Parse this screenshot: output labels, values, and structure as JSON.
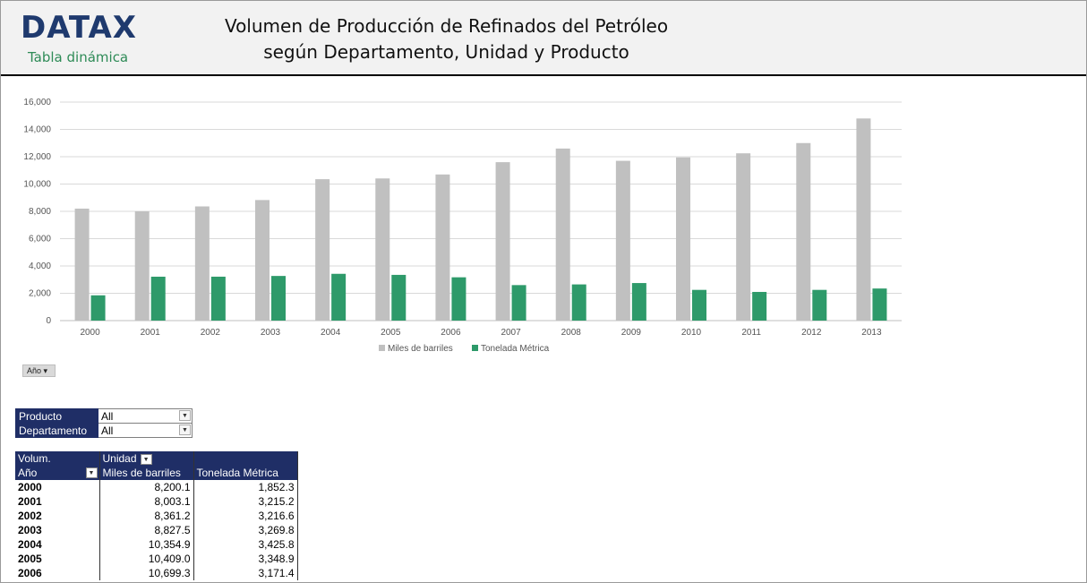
{
  "header": {
    "logo": "DATAX",
    "logo_sub": "Tabla dinámica",
    "title_line1": "Volumen de Producción de Refinados del Petróleo",
    "title_line2": "según Departamento, Unidad y Producto"
  },
  "colors": {
    "series1": "#c0c0c0",
    "series2": "#2e9a6a",
    "header_blue": "#1f2e66"
  },
  "chart_data": {
    "type": "bar",
    "categories": [
      "2000",
      "2001",
      "2002",
      "2003",
      "2004",
      "2005",
      "2006",
      "2007",
      "2008",
      "2009",
      "2010",
      "2011",
      "2012",
      "2013"
    ],
    "series": [
      {
        "name": "Miles de barriles",
        "values": [
          8200.1,
          8003.1,
          8361.2,
          8827.5,
          10354.9,
          10409.0,
          10699.3,
          11600,
          12600,
          11700,
          11950,
          12250,
          13000,
          14800
        ]
      },
      {
        "name": "Tonelada Métrica",
        "values": [
          1852.3,
          3215.2,
          3216.6,
          3269.8,
          3425.8,
          3348.9,
          3171.4,
          2600,
          2650,
          2750,
          2250,
          2100,
          2250,
          2350
        ]
      }
    ],
    "yticks": [
      "0",
      "2,000",
      "4,000",
      "6,000",
      "8,000",
      "10,000",
      "12,000",
      "14,000",
      "16,000"
    ],
    "ylim": [
      0,
      16000
    ],
    "legend": "bottom",
    "grid": true
  },
  "year_button": "Año",
  "filters": [
    {
      "label": "Producto",
      "value": "All"
    },
    {
      "label": "Departamento",
      "value": "All"
    }
  ],
  "pivot": {
    "corner_label": "Volum.",
    "column_field": "Unidad",
    "row_field": "Año",
    "col1": "Miles de barriles",
    "col2": "Tonelada Métrica",
    "rows": [
      {
        "year": "2000",
        "v1": "8,200.1",
        "v2": "1,852.3"
      },
      {
        "year": "2001",
        "v1": "8,003.1",
        "v2": "3,215.2"
      },
      {
        "year": "2002",
        "v1": "8,361.2",
        "v2": "3,216.6"
      },
      {
        "year": "2003",
        "v1": "8,827.5",
        "v2": "3,269.8"
      },
      {
        "year": "2004",
        "v1": "10,354.9",
        "v2": "3,425.8"
      },
      {
        "year": "2005",
        "v1": "10,409.0",
        "v2": "3,348.9"
      },
      {
        "year": "2006",
        "v1": "10,699.3",
        "v2": "3,171.4"
      }
    ]
  }
}
